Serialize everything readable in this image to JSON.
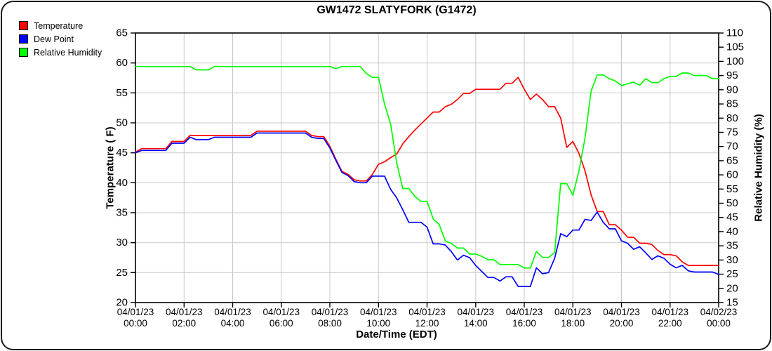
{
  "title": "GW1472 SLATYFORK (G1472)",
  "legend": {
    "items": [
      {
        "label": "Temperature",
        "color": "#ff0000"
      },
      {
        "label": "Dew Point",
        "color": "#0000ff"
      },
      {
        "label": "Relative Humidity",
        "color": "#00ff00"
      }
    ]
  },
  "colors": {
    "grid": "#c8c8c8",
    "axis": "#000000",
    "background": "#ffffff",
    "temperature": "#ff0000",
    "dew_point": "#0000ff",
    "relative_humidity": "#00ff00"
  },
  "chart_data": {
    "type": "line",
    "title": "GW1472 SLATYFORK (G1472)",
    "xlabel": "Date/Time (EDT)",
    "ylabel_left": "Temperature ( F)",
    "ylabel_right": "Relative Humidity (%)",
    "grid": true,
    "legend_position": "top-left",
    "x_start": "04/01/23 00:00",
    "x_end": "04/02/23 00:00",
    "interval_minutes": 15,
    "x_hours_range": [
      0,
      24
    ],
    "y_left_range": [
      20,
      65
    ],
    "y_right_range": [
      15,
      110
    ],
    "y_left_ticks": [
      65,
      60,
      55,
      50,
      45,
      40,
      35,
      30,
      25,
      20
    ],
    "y_right_ticks": [
      110,
      105,
      100,
      95,
      90,
      85,
      80,
      75,
      70,
      65,
      60,
      55,
      50,
      45,
      40,
      35,
      30,
      25,
      20,
      15
    ],
    "x_ticks": [
      {
        "date": "04/01/23",
        "time": "00:00"
      },
      {
        "date": "04/01/23",
        "time": "02:00"
      },
      {
        "date": "04/01/23",
        "time": "04:00"
      },
      {
        "date": "04/01/23",
        "time": "06:00"
      },
      {
        "date": "04/01/23",
        "time": "08:00"
      },
      {
        "date": "04/01/23",
        "time": "10:00"
      },
      {
        "date": "04/01/23",
        "time": "12:00"
      },
      {
        "date": "04/01/23",
        "time": "14:00"
      },
      {
        "date": "04/01/23",
        "time": "16:00"
      },
      {
        "date": "04/01/23",
        "time": "18:00"
      },
      {
        "date": "04/01/23",
        "time": "20:00"
      },
      {
        "date": "04/01/23",
        "time": "22:00"
      },
      {
        "date": "04/02/23",
        "time": "00:00"
      }
    ],
    "series": [
      {
        "name": "Temperature",
        "axis": "left",
        "color": "#ff0000",
        "values": [
          45.1,
          45.7,
          45.7,
          45.7,
          45.7,
          45.7,
          46.9,
          46.9,
          46.9,
          47.9,
          47.9,
          47.9,
          47.9,
          47.9,
          47.9,
          47.9,
          47.9,
          47.9,
          47.9,
          47.9,
          48.6,
          48.6,
          48.6,
          48.6,
          48.6,
          48.6,
          48.6,
          48.6,
          48.6,
          47.9,
          47.7,
          47.7,
          46.1,
          43.9,
          41.9,
          41.4,
          40.5,
          40.3,
          40.3,
          41.4,
          43.1,
          43.5,
          44.2,
          44.8,
          46.5,
          47.7,
          48.8,
          49.8,
          50.8,
          51.8,
          51.8,
          52.7,
          53.1,
          53.9,
          54.9,
          54.9,
          55.6,
          55.6,
          55.6,
          55.6,
          55.6,
          56.6,
          56.6,
          57.6,
          55.6,
          53.9,
          54.8,
          53.9,
          52.7,
          52.7,
          50.8,
          45.9,
          46.9,
          44.9,
          42.0,
          38.0,
          35.2,
          35.2,
          33.0,
          33.0,
          32.1,
          30.9,
          30.9,
          29.9,
          29.9,
          29.7,
          28.7,
          28.0,
          28.0,
          27.8,
          26.8,
          26.2,
          26.2,
          26.2,
          26.2,
          26.2,
          26.2
        ]
      },
      {
        "name": "Dew Point",
        "axis": "left",
        "color": "#0000ff",
        "values": [
          45.0,
          45.4,
          45.4,
          45.4,
          45.4,
          45.4,
          46.6,
          46.6,
          46.6,
          47.6,
          47.2,
          47.2,
          47.2,
          47.6,
          47.6,
          47.6,
          47.6,
          47.6,
          47.6,
          47.6,
          48.3,
          48.3,
          48.3,
          48.3,
          48.3,
          48.3,
          48.3,
          48.3,
          48.3,
          47.6,
          47.4,
          47.4,
          45.8,
          43.7,
          41.7,
          41.2,
          40.2,
          40.0,
          40.0,
          41.1,
          41.1,
          41.1,
          38.9,
          37.5,
          35.5,
          33.4,
          33.4,
          33.4,
          32.6,
          29.8,
          29.8,
          29.6,
          28.5,
          27.1,
          27.9,
          27.5,
          26.2,
          25.2,
          24.2,
          24.2,
          23.6,
          24.3,
          24.3,
          22.7,
          22.7,
          22.7,
          25.8,
          24.8,
          25.0,
          27.4,
          31.5,
          31.0,
          32.1,
          32.1,
          33.9,
          33.7,
          35.1,
          33.4,
          32.3,
          32.3,
          30.3,
          29.9,
          28.9,
          29.3,
          28.3,
          27.2,
          27.8,
          27.4,
          26.4,
          25.8,
          26.2,
          25.3,
          25.1,
          25.1,
          25.1,
          25.1,
          24.7
        ]
      },
      {
        "name": "Relative Humidity",
        "axis": "right",
        "color": "#00ff00",
        "values": [
          98.2,
          98.2,
          98.2,
          98.2,
          98.2,
          98.2,
          98.2,
          98.2,
          98.2,
          98.2,
          97.0,
          97.0,
          97.0,
          98.2,
          98.2,
          98.2,
          98.2,
          98.2,
          98.2,
          98.2,
          98.2,
          98.2,
          98.2,
          98.2,
          98.2,
          98.2,
          98.2,
          98.2,
          98.2,
          98.2,
          98.2,
          98.2,
          98.2,
          97.4,
          98.2,
          98.2,
          98.2,
          98.2,
          95.7,
          94.4,
          94.4,
          85.0,
          77.9,
          64.3,
          55.2,
          55.2,
          52.4,
          50.7,
          50.7,
          44.5,
          42.5,
          36.7,
          35.9,
          34.2,
          34.2,
          32.1,
          32.1,
          31.3,
          30.1,
          30.1,
          28.4,
          28.4,
          28.4,
          28.4,
          27.2,
          27.2,
          33.0,
          30.9,
          30.9,
          32.6,
          56.9,
          56.9,
          52.8,
          61.4,
          73.0,
          89.5,
          95.2,
          95.2,
          93.9,
          93.1,
          91.5,
          92.1,
          92.7,
          91.6,
          93.9,
          92.5,
          92.5,
          93.9,
          94.7,
          94.7,
          95.9,
          95.9,
          95.0,
          95.0,
          95.0,
          93.9,
          93.9
        ]
      }
    ]
  }
}
